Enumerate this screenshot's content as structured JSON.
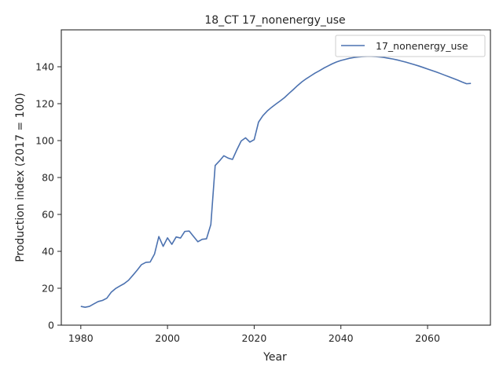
{
  "chart_data": {
    "type": "line",
    "title": "18_CT 17_nonenergy_use",
    "xlabel": "Year",
    "ylabel": "Production index (2017 = 100)",
    "xlim": [
      1975.5,
      2074.5
    ],
    "ylim": [
      0,
      160
    ],
    "xticks": [
      1980,
      2000,
      2020,
      2040,
      2060
    ],
    "yticks": [
      0,
      20,
      40,
      60,
      80,
      100,
      120,
      140
    ],
    "grid": false,
    "legend_position": "top-right",
    "series": [
      {
        "name": "17_nonenergy_use",
        "color": "#4c72b0",
        "x": [
          1980,
          1981,
          1982,
          1983,
          1984,
          1985,
          1986,
          1987,
          1988,
          1989,
          1990,
          1991,
          1992,
          1993,
          1994,
          1995,
          1996,
          1997,
          1998,
          1999,
          2000,
          2001,
          2002,
          2003,
          2004,
          2005,
          2006,
          2007,
          2008,
          2009,
          2010,
          2011,
          2012,
          2013,
          2014,
          2015,
          2016,
          2017,
          2018,
          2019,
          2020,
          2021,
          2022,
          2023,
          2024,
          2025,
          2026,
          2027,
          2028,
          2029,
          2030,
          2031,
          2032,
          2033,
          2034,
          2035,
          2036,
          2037,
          2038,
          2039,
          2040,
          2041,
          2042,
          2043,
          2044,
          2045,
          2046,
          2047,
          2048,
          2049,
          2050,
          2051,
          2052,
          2053,
          2054,
          2055,
          2056,
          2057,
          2058,
          2059,
          2060,
          2061,
          2062,
          2063,
          2064,
          2065,
          2066,
          2067,
          2068,
          2069,
          2070
        ],
        "values": [
          10.2,
          9.7,
          10.2,
          11.5,
          12.8,
          13.4,
          14.6,
          17.8,
          19.8,
          21.2,
          22.5,
          24.3,
          27.0,
          29.8,
          32.8,
          34.0,
          34.2,
          38.5,
          48.0,
          42.7,
          47.3,
          43.8,
          47.8,
          47.2,
          50.8,
          51.0,
          48.1,
          45.2,
          46.5,
          46.8,
          54.5,
          86.5,
          89.0,
          91.8,
          90.5,
          89.8,
          95.0,
          99.8,
          101.5,
          99.2,
          100.5,
          110.0,
          113.5,
          116.0,
          118.0,
          119.8,
          121.5,
          123.3,
          125.5,
          127.6,
          129.8,
          131.8,
          133.5,
          135.0,
          136.5,
          137.8,
          139.2,
          140.4,
          141.6,
          142.6,
          143.4,
          144.0,
          144.6,
          145.0,
          145.3,
          145.5,
          145.6,
          145.6,
          145.5,
          145.3,
          145.0,
          144.6,
          144.2,
          143.7,
          143.1,
          142.5,
          141.8,
          141.1,
          140.4,
          139.6,
          138.8,
          138.0,
          137.2,
          136.3,
          135.4,
          134.5,
          133.6,
          132.7,
          131.7,
          130.8,
          131.0
        ]
      }
    ]
  }
}
